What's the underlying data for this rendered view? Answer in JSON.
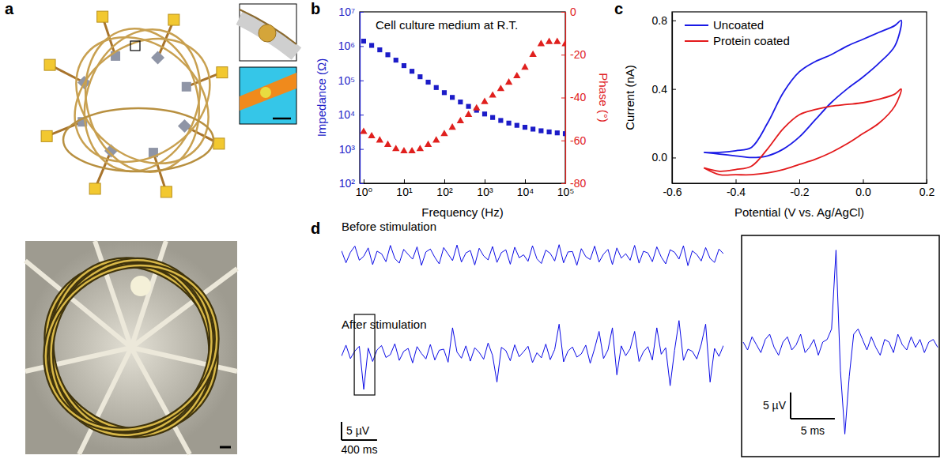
{
  "diagram": {
    "panel": "a"
  },
  "chart_data": [
    {
      "panel": "b",
      "type": "scatter",
      "log": true,
      "annotation": "Cell culture medium at R.T.",
      "xlabel": "Frequency (Hz)",
      "ylabel": "Impedance (Ω)",
      "y2label": "Phase (°)",
      "x": [
        1,
        1.58,
        2.51,
        3.98,
        6.31,
        10,
        15.8,
        25.1,
        39.8,
        63.1,
        100,
        158,
        251,
        398,
        631,
        1000,
        1580,
        2510,
        3980,
        6310,
        10000,
        15800,
        25100,
        39800,
        63100,
        100000
      ],
      "xlim": [
        0.8,
        100000
      ],
      "xticks": [
        {
          "value": 1,
          "label": "10⁰"
        },
        {
          "value": 10,
          "label": "10¹"
        },
        {
          "value": 100,
          "label": "10²"
        },
        {
          "value": 1000,
          "label": "10³"
        },
        {
          "value": 10000,
          "label": "10⁴"
        },
        {
          "value": 100000,
          "label": "10⁵"
        }
      ],
      "ylim": [
        100,
        10000000
      ],
      "yticks": [
        {
          "value": 100,
          "label": "10²"
        },
        {
          "value": 1000,
          "label": "10³"
        },
        {
          "value": 10000,
          "label": "10⁴"
        },
        {
          "value": 100000,
          "label": "10⁵"
        },
        {
          "value": 1000000,
          "label": "10⁶"
        },
        {
          "value": 10000000,
          "label": "10⁷"
        }
      ],
      "y2lim": [
        -80,
        0
      ],
      "y2ticks": [
        -80,
        -60,
        -40,
        -20,
        0
      ],
      "series": [
        {
          "color": "#1c1cc8",
          "marker": "square",
          "values": [
            1400000,
            1050000,
            780000,
            560000,
            390000,
            270000,
            185000,
            128000,
            89000,
            62000,
            44000,
            32000,
            23500,
            17500,
            13500,
            10500,
            8300,
            6800,
            5700,
            4900,
            4300,
            3800,
            3400,
            3150,
            2950,
            2800
          ]
        },
        {
          "color": "#e0201e",
          "marker": "triangle",
          "axis": "y2",
          "values": [
            -56,
            -58,
            -60,
            -62,
            -64,
            -65,
            -65,
            -64,
            -62,
            -60,
            -57,
            -54,
            -51,
            -48,
            -45,
            -42,
            -39,
            -36,
            -33,
            -30,
            -26,
            -20,
            -15,
            -14,
            -14,
            -15
          ]
        }
      ]
    },
    {
      "panel": "c",
      "type": "line",
      "legend": "upper left",
      "xlabel": "Potential (V vs. Ag/AgCl)",
      "ylabel": "Current (nA)",
      "xlim": [
        -0.6,
        0.2
      ],
      "xticks": [
        -0.6,
        -0.4,
        -0.2,
        {
          "value": 0,
          "label": "0.0"
        },
        0.2
      ],
      "ylim": [
        -0.15,
        0.85
      ],
      "yticks": [
        {
          "value": 0,
          "label": "0.0"
        },
        0.4,
        0.8
      ],
      "series": [
        {
          "name": "Uncoated",
          "color": "#1a1ae6",
          "x": [
            -0.5,
            -0.45,
            -0.4,
            -0.35,
            -0.3,
            -0.25,
            -0.2,
            -0.15,
            -0.1,
            -0.05,
            0,
            0.05,
            0.1,
            0.12,
            0.1,
            0.05,
            0,
            -0.05,
            -0.1,
            -0.15,
            -0.2,
            -0.25,
            -0.3,
            -0.35,
            -0.4,
            -0.45,
            -0.5
          ],
          "values": [
            0.03,
            0.03,
            0.04,
            0.06,
            0.2,
            0.38,
            0.5,
            0.56,
            0.6,
            0.65,
            0.69,
            0.73,
            0.77,
            0.8,
            0.65,
            0.55,
            0.47,
            0.4,
            0.32,
            0.22,
            0.12,
            0.05,
            0.01,
            0.0,
            0.01,
            0.02,
            0.03
          ]
        },
        {
          "name": "Protein coated",
          "color": "#e31a1c",
          "x": [
            -0.5,
            -0.45,
            -0.4,
            -0.35,
            -0.3,
            -0.25,
            -0.2,
            -0.15,
            -0.1,
            -0.05,
            0,
            0.05,
            0.1,
            0.12,
            0.1,
            0.05,
            0,
            -0.05,
            -0.1,
            -0.15,
            -0.2,
            -0.25,
            -0.3,
            -0.35,
            -0.4,
            -0.45,
            -0.5
          ],
          "values": [
            -0.06,
            -0.08,
            -0.07,
            -0.05,
            0.05,
            0.17,
            0.25,
            0.28,
            0.3,
            0.31,
            0.32,
            0.34,
            0.37,
            0.4,
            0.3,
            0.2,
            0.14,
            0.08,
            0.03,
            -0.01,
            -0.04,
            -0.07,
            -0.09,
            -0.1,
            -0.1,
            -0.1,
            -0.06
          ]
        }
      ]
    },
    {
      "panel": "d",
      "type": "line",
      "tick_labels": false,
      "x": [
        0,
        50,
        100,
        150,
        200,
        250,
        300,
        350,
        400,
        450,
        500,
        550,
        600,
        650,
        700,
        750,
        800,
        850,
        900,
        950,
        1000,
        1050,
        1100,
        1150,
        1200,
        1250,
        1300,
        1350,
        1400,
        1450,
        1500,
        1550,
        1600,
        1650,
        1700,
        1750,
        1800,
        1850,
        1900,
        1950,
        2000,
        2050,
        2100,
        2150,
        2200,
        2250,
        2300,
        2350,
        2400,
        2450,
        2500,
        2550,
        2600,
        2650,
        2700,
        2750,
        2800,
        2850,
        2900,
        2950,
        3000,
        3050,
        3100,
        3150,
        3200,
        3250,
        3300,
        3350,
        3400,
        3450,
        3500,
        3550,
        3600,
        3650,
        3700,
        3750,
        3800,
        3850,
        3900,
        3950,
        4000,
        4050,
        4100,
        4150,
        4200,
        4250,
        4300
      ],
      "xlim": [
        0,
        4300
      ],
      "ylim": [
        -12,
        12
      ],
      "series": [
        {
          "name": "Before stimulation",
          "color": "#0a0ae6",
          "values": [
            1.2,
            -2.1,
            0.8,
            2.5,
            -1.4,
            -0.3,
            2.0,
            -2.6,
            1.1,
            0.4,
            -1.8,
            2.7,
            -0.9,
            -2.2,
            1.6,
            0.2,
            -1.1,
            2.3,
            -2.8,
            0.9,
            1.7,
            -0.6,
            -2.4,
            2.1,
            0.3,
            -1.5,
            2.8,
            -1.9,
            0.6,
            1.3,
            -2.7,
            1.9,
            -0.2,
            -1.3,
            2.4,
            -2.0,
            0.7,
            1.5,
            -2.5,
            2.2,
            -0.7,
            0.1,
            -1.7,
            2.6,
            -1.0,
            -2.3,
            1.4,
            0.5,
            -1.6,
            2.9,
            -2.1,
            0.9,
            1.0,
            -2.8,
            1.8,
            -0.4,
            -1.2,
            2.5,
            -1.9,
            0.3,
            1.6,
            -2.6,
            2.0,
            -0.8,
            0.4,
            -1.4,
            2.7,
            -2.2,
            1.1,
            0.6,
            -1.8,
            2.3,
            -0.5,
            -2.4,
            1.5,
            0.8,
            -1.1,
            2.6,
            -2.9,
            1.2,
            0.2,
            -1.6,
            2.1,
            -0.9,
            -2.0,
            1.7,
            0.4
          ]
        },
        {
          "name": "After stimulation",
          "color": "#0a0ae6",
          "values": [
            -0.8,
            2.2,
            -1.5,
            0.6,
            1.9,
            -10,
            1.4,
            -2.3,
            0.9,
            2.1,
            -1.2,
            -0.4,
            2.6,
            -2.0,
            0.5,
            1.3,
            -2.7,
            1.8,
            -0.1,
            -1.6,
            2.4,
            -1.9,
            0.8,
            1.1,
            -2.5,
            7,
            0.3,
            -1.4,
            2.0,
            -2.2,
            1.5,
            0.2,
            -1.7,
            2.8,
            -0.6,
            -8,
            1.6,
            0.7,
            -2.1,
            2.3,
            -1.0,
            0.4,
            1.9,
            -2.6,
            0.1,
            -1.3,
            2.5,
            -1.8,
            1.0,
            8,
            -2.4,
            0.6,
            1.7,
            -1.1,
            -0.2,
            2.2,
            -2.8,
            1.3,
            6,
            -1.5,
            0.9,
            7,
            -6,
            2.0,
            -0.7,
            1.2,
            6,
            -2.3,
            0.4,
            1.8,
            -1.9,
            7,
            -0.3,
            1.5,
            -9,
            0.8,
            9,
            -2.0,
            1.1,
            0.5,
            -1.6,
            2.4,
            8,
            -8,
            1.3,
            -0.9,
            2.1
          ]
        }
      ],
      "scale_bars": [
        {
          "axis": "y",
          "value": 5,
          "label": "5 µV"
        },
        {
          "axis": "x",
          "value": 400,
          "label": "400 ms"
        }
      ]
    },
    {
      "type": "line",
      "tick_labels": false,
      "x": [
        0,
        0.5,
        1,
        1.5,
        2,
        2.5,
        3,
        3.5,
        4,
        4.5,
        5,
        5.5,
        6,
        6.5,
        7,
        7.5,
        8,
        8.5,
        9,
        9.5,
        10,
        10.5,
        11,
        11.5,
        12,
        12.5,
        13,
        13.5,
        14,
        14.5,
        15,
        15.5,
        16,
        16.5,
        17,
        17.5,
        18,
        18.5,
        19,
        19.5,
        20,
        20.5,
        21,
        21.5,
        22
      ],
      "xlim": [
        0,
        22
      ],
      "ylim": [
        -21,
        20.5
      ],
      "series": [
        {
          "color": "#0a0ae6",
          "values": [
            0.5,
            -1,
            1.5,
            0,
            -1.5,
            1,
            2,
            -0.5,
            -2,
            0.5,
            1.5,
            -1,
            0,
            2,
            -1.5,
            -0.5,
            1,
            -2,
            0.5,
            1,
            3,
            18,
            -5,
            -17,
            -6,
            2,
            3,
            1,
            -1,
            1.5,
            -0.5,
            -2,
            1,
            0.5,
            -1.5,
            2,
            0,
            -1,
            1.5,
            -0.5,
            1,
            -1.5,
            0.5,
            1,
            -0.5
          ]
        }
      ],
      "scale_bars": [
        {
          "axis": "y",
          "value": 5,
          "label": "5 µV"
        },
        {
          "axis": "x",
          "value": 5,
          "label": "5 ms"
        }
      ]
    }
  ]
}
